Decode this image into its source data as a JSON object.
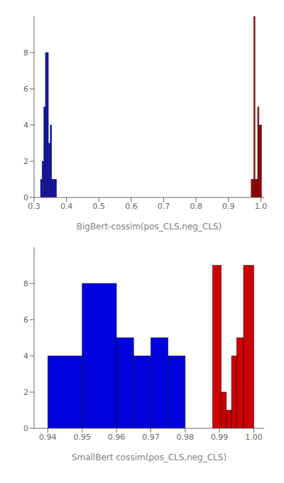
{
  "chart_data": [
    {
      "type": "bar",
      "xlabel": "BigBert-cossim(pos_CLS,neg_CLS)",
      "bin_width": 0.004,
      "series": [
        {
          "color": "#0000dd",
          "x": [
            0.32,
            0.325,
            0.33,
            0.335,
            0.34,
            0.345,
            0.35,
            0.355,
            0.36,
            0.365
          ],
          "values": [
            1,
            2,
            5,
            8,
            8,
            3,
            4,
            1,
            1,
            1
          ]
        },
        {
          "color": "#cc0000",
          "x": [
            0.97,
            0.974,
            0.978,
            0.982,
            0.986,
            0.99,
            0.994,
            0.998
          ],
          "values": [
            1,
            1,
            10,
            1,
            1,
            5,
            4,
            4
          ]
        }
      ],
      "xlim": [
        0.3,
        1.01
      ],
      "xticks": [
        0.3,
        0.4,
        0.5,
        0.6,
        0.7,
        0.8,
        0.9,
        {
          "value": 1.0,
          "label": "1.0"
        }
      ],
      "ylim": [
        0,
        10
      ],
      "yticks": [
        0,
        2,
        4,
        6,
        8
      ],
      "grid": false
    },
    {
      "type": "bar",
      "xlabel": "SmallBert cossim(pos_CLS,neg_CLS)",
      "series": [
        {
          "color": "#0000dd",
          "x": [
            0.94,
            0.95,
            0.96,
            0.965,
            0.97,
            0.975
          ],
          "widths": [
            0.01,
            0.01,
            0.005,
            0.005,
            0.005,
            0.005
          ],
          "values": [
            4,
            8,
            5,
            4,
            5,
            4
          ]
        },
        {
          "color": "#cc0000",
          "x": [
            0.988,
            0.9905,
            0.992,
            0.9935,
            0.995,
            0.997
          ],
          "widths": [
            0.0025,
            0.0015,
            0.0015,
            0.0015,
            0.002,
            0.003
          ],
          "values": [
            9,
            2,
            1,
            4,
            5,
            9
          ]
        }
      ],
      "xlim": [
        0.936,
        1.003
      ],
      "xticks": [
        0.94,
        0.95,
        0.96,
        0.97,
        0.98,
        0.99,
        {
          "value": 1.0,
          "label": "1.00"
        }
      ],
      "ylim": [
        0,
        10
      ],
      "yticks": [
        0,
        2,
        4,
        6,
        8
      ],
      "grid": false
    }
  ]
}
